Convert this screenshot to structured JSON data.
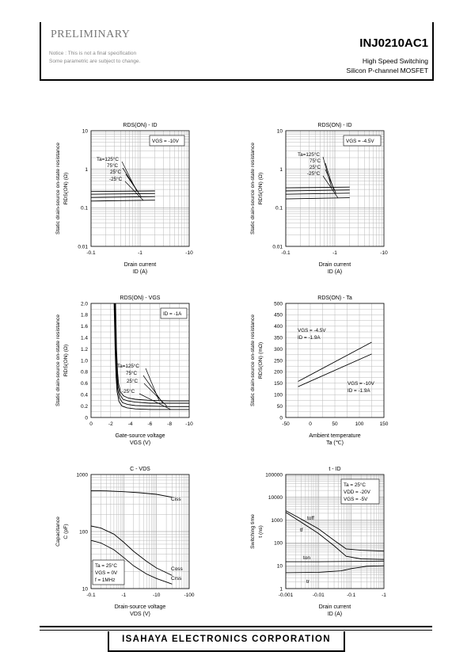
{
  "header": {
    "status": "PRELIMINARY",
    "notice1": "Notice : This is not a final specification",
    "notice2": "Some parametric are subject to change.",
    "part": "INJ0210AC1",
    "sub1": "High Speed Switching",
    "sub2": "Silicon P-channel MOSFET"
  },
  "footer": {
    "company": "ISAHAYA ELECTRONICS CORPORATION"
  },
  "chart_data": [
    {
      "id": "c1",
      "type": "line",
      "title": "RDS(ON) - ID",
      "xlabel": "Drain current",
      "xunit": "ID (A)",
      "ylabel": "Static drain-source on-state resistance",
      "yunit": "RDS(ON) (Ω)",
      "xscale": "log",
      "yscale": "log",
      "xlim": [
        0.1,
        10
      ],
      "ylim": [
        0.01,
        10
      ],
      "xticks": [
        0.1,
        1,
        10
      ],
      "xticklabels": [
        "-0.1",
        "-1",
        "-10"
      ],
      "yticks": [
        0.01,
        0.1,
        1,
        10
      ],
      "yticklabels": [
        "0.01",
        "0.1",
        "1",
        "10"
      ],
      "condition": [
        "VGS = -10V"
      ],
      "series_labels": [
        "Ta=125°C",
        "75°C",
        "25°C",
        "-25°C"
      ],
      "series": [
        {
          "name": "Ta=125°C",
          "x": [
            0.1,
            2
          ],
          "y": [
            0.265,
            0.275
          ]
        },
        {
          "name": "75°C",
          "x": [
            0.1,
            2
          ],
          "y": [
            0.225,
            0.235
          ]
        },
        {
          "name": "25°C",
          "x": [
            0.1,
            2
          ],
          "y": [
            0.185,
            0.195
          ]
        },
        {
          "name": "-25°C",
          "x": [
            0.1,
            2
          ],
          "y": [
            0.15,
            0.158
          ]
        }
      ]
    },
    {
      "id": "c2",
      "type": "line",
      "title": "RDS(ON) - ID",
      "xlabel": "Drain current",
      "xunit": "ID (A)",
      "ylabel": "Static drain-source on-state resistance",
      "yunit": "RDS(ON) (Ω)",
      "xscale": "log",
      "yscale": "log",
      "xlim": [
        0.1,
        10
      ],
      "ylim": [
        0.01,
        10
      ],
      "xticks": [
        0.1,
        1,
        10
      ],
      "xticklabels": [
        "-0.1",
        "-1",
        "-10"
      ],
      "yticks": [
        0.01,
        0.1,
        1,
        10
      ],
      "yticklabels": [
        "0.01",
        "0.1",
        "1",
        "10"
      ],
      "condition": [
        "VGS = -4.5V"
      ],
      "series_labels": [
        "Ta=125°C",
        "75°C",
        "25°C",
        "-25°C"
      ],
      "series": [
        {
          "name": "Ta=125°C",
          "x": [
            0.1,
            2
          ],
          "y": [
            0.33,
            0.345
          ]
        },
        {
          "name": "75°C",
          "x": [
            0.1,
            2
          ],
          "y": [
            0.275,
            0.29
          ]
        },
        {
          "name": "25°C",
          "x": [
            0.1,
            2
          ],
          "y": [
            0.225,
            0.24
          ]
        },
        {
          "name": "-25°C",
          "x": [
            0.1,
            2
          ],
          "y": [
            0.17,
            0.183
          ]
        }
      ]
    },
    {
      "id": "c3",
      "type": "line",
      "title": "RDS(ON) - VGS",
      "xlabel": "Gate-source voltage",
      "xunit": "VGS (V)",
      "ylabel": "Static drain-source on-state resistance",
      "yunit": "RDS(ON) (Ω)",
      "xscale": "linear",
      "yscale": "linear",
      "xlim": [
        0,
        10
      ],
      "ylim": [
        0,
        2.0
      ],
      "xticks": [
        0,
        2,
        4,
        6,
        8,
        10
      ],
      "xticklabels": [
        "0",
        "-2",
        "-4",
        "-6",
        "-8",
        "-10"
      ],
      "yticks": [
        0,
        0.2,
        0.4,
        0.6,
        0.8,
        1.0,
        1.2,
        1.4,
        1.6,
        1.8,
        2.0
      ],
      "yticklabels": [
        "0",
        "0.2",
        "0.4",
        "0.6",
        "0.8",
        "1.0",
        "1.2",
        "1.4",
        "1.6",
        "1.8",
        "2.0"
      ],
      "condition": [
        "ID = -1A"
      ],
      "series_labels": [
        "Ta=125°C",
        "75°C",
        "25°C",
        "-25°C"
      ],
      "series": [
        {
          "name": "Ta=125°C",
          "x": [
            2.5,
            2.6,
            2.7,
            2.8,
            3.0,
            3.3,
            3.8,
            4.5,
            6,
            8,
            10
          ],
          "y": [
            2.0,
            1.2,
            0.8,
            0.6,
            0.45,
            0.38,
            0.34,
            0.32,
            0.3,
            0.29,
            0.29
          ]
        },
        {
          "name": "75°C",
          "x": [
            2.45,
            2.55,
            2.65,
            2.75,
            2.95,
            3.25,
            3.75,
            4.5,
            6,
            8,
            10
          ],
          "y": [
            2.0,
            1.2,
            0.78,
            0.55,
            0.4,
            0.32,
            0.29,
            0.27,
            0.25,
            0.25,
            0.25
          ]
        },
        {
          "name": "25°C",
          "x": [
            2.4,
            2.5,
            2.6,
            2.7,
            2.9,
            3.2,
            3.7,
            4.5,
            6,
            8,
            10
          ],
          "y": [
            2.0,
            1.2,
            0.75,
            0.5,
            0.34,
            0.26,
            0.23,
            0.21,
            0.2,
            0.19,
            0.19
          ]
        },
        {
          "name": "-25°C",
          "x": [
            2.35,
            2.45,
            2.55,
            2.65,
            2.85,
            3.15,
            3.65,
            4.5,
            6,
            8,
            10
          ],
          "y": [
            2.0,
            1.2,
            0.72,
            0.45,
            0.28,
            0.2,
            0.17,
            0.15,
            0.14,
            0.14,
            0.14
          ]
        }
      ]
    },
    {
      "id": "c4",
      "type": "line",
      "title": "RDS(ON) - Ta",
      "xlabel": "Ambient temperature",
      "xunit": "Ta (℃)",
      "ylabel": "Static drain-source on-state resistance",
      "yunit": "RDS(ON) (mΩ)",
      "xscale": "linear",
      "yscale": "linear",
      "xlim": [
        -50,
        150
      ],
      "ylim": [
        0,
        500
      ],
      "xticks": [
        -50,
        0,
        50,
        100,
        150
      ],
      "xticklabels": [
        "-50",
        "0",
        "50",
        "100",
        "150"
      ],
      "yticks": [
        0,
        50,
        100,
        150,
        200,
        250,
        300,
        350,
        400,
        450,
        500
      ],
      "yticklabels": [
        "0",
        "50",
        "100",
        "150",
        "200",
        "250",
        "300",
        "350",
        "400",
        "450",
        "500"
      ],
      "annotations": [
        {
          "lines": [
            "VGS = -4.5V",
            "ID = -1.9A"
          ],
          "pos": "upper-left"
        },
        {
          "lines": [
            "VGS = -10V",
            "ID = -1.9A"
          ],
          "pos": "lower-right"
        }
      ],
      "series": [
        {
          "name": "VGS = -4.5V",
          "x": [
            -25,
            125
          ],
          "y": [
            158,
            330
          ]
        },
        {
          "name": "VGS = -10V",
          "x": [
            -25,
            125
          ],
          "y": [
            135,
            278
          ]
        }
      ]
    },
    {
      "id": "c5",
      "type": "line",
      "title": "C - VDS",
      "xlabel": "Drain-source voltage",
      "xunit": "VDS (V)",
      "ylabel": "Capacitance",
      "yunit": "C (pF)",
      "xscale": "log",
      "yscale": "log",
      "xlim": [
        0.1,
        100
      ],
      "ylim": [
        10,
        1000
      ],
      "xticks": [
        0.1,
        1,
        10,
        100
      ],
      "xticklabels": [
        "-0.1",
        "-1",
        "-10",
        "-100"
      ],
      "yticks": [
        10,
        100,
        1000
      ],
      "yticklabels": [
        "10",
        "100",
        "1000"
      ],
      "condition": [
        "Ta = 25°C",
        "VGS = 0V",
        "f = 1MHz"
      ],
      "series": [
        {
          "name": "Ciss",
          "x": [
            0.1,
            0.3,
            1,
            3,
            10,
            30
          ],
          "y": [
            520,
            515,
            500,
            480,
            450,
            400
          ]
        },
        {
          "name": "Coss",
          "x": [
            0.1,
            0.2,
            0.5,
            1,
            2,
            5,
            10,
            30
          ],
          "y": [
            125,
            115,
            90,
            65,
            45,
            30,
            23,
            17
          ]
        },
        {
          "name": "Crss",
          "x": [
            0.1,
            0.2,
            0.5,
            1,
            2,
            5,
            10,
            30
          ],
          "y": [
            70,
            63,
            48,
            35,
            25,
            18,
            15,
            12
          ]
        }
      ]
    },
    {
      "id": "c6",
      "type": "line",
      "title": "t - ID",
      "xlabel": "Drain current",
      "xunit": "ID (A)",
      "ylabel": "Switching time",
      "yunit": "t (ns)",
      "xscale": "log",
      "yscale": "log",
      "xlim": [
        0.001,
        1
      ],
      "ylim": [
        1,
        100000
      ],
      "xticks": [
        0.001,
        0.01,
        0.1,
        1
      ],
      "xticklabels": [
        "-0.001",
        "-0.01",
        "-0.1",
        "-1"
      ],
      "yticks": [
        1,
        10,
        100,
        1000,
        10000,
        100000
      ],
      "yticklabels": [
        "1",
        "10",
        "100",
        "1000",
        "10000",
        "100000"
      ],
      "condition": [
        "Ta = 25°C",
        "VDD = -20V",
        "VGS = -5V"
      ],
      "series": [
        {
          "name": "toff",
          "x": [
            0.001,
            0.003,
            0.01,
            0.03,
            0.07,
            0.2,
            1
          ],
          "y": [
            2600,
            1100,
            420,
            130,
            55,
            48,
            44
          ]
        },
        {
          "name": "tf",
          "x": [
            0.001,
            0.003,
            0.01,
            0.03,
            0.07,
            0.2,
            1
          ],
          "y": [
            2200,
            800,
            260,
            75,
            26,
            20,
            19
          ]
        },
        {
          "name": "ton",
          "x": [
            0.001,
            0.01,
            0.1,
            1
          ],
          "y": [
            15,
            15,
            15.5,
            16
          ]
        },
        {
          "name": "tr",
          "x": [
            0.001,
            0.01,
            0.05,
            0.1,
            0.3,
            1
          ],
          "y": [
            5,
            5.2,
            6,
            7.5,
            9.5,
            10
          ]
        }
      ]
    }
  ]
}
